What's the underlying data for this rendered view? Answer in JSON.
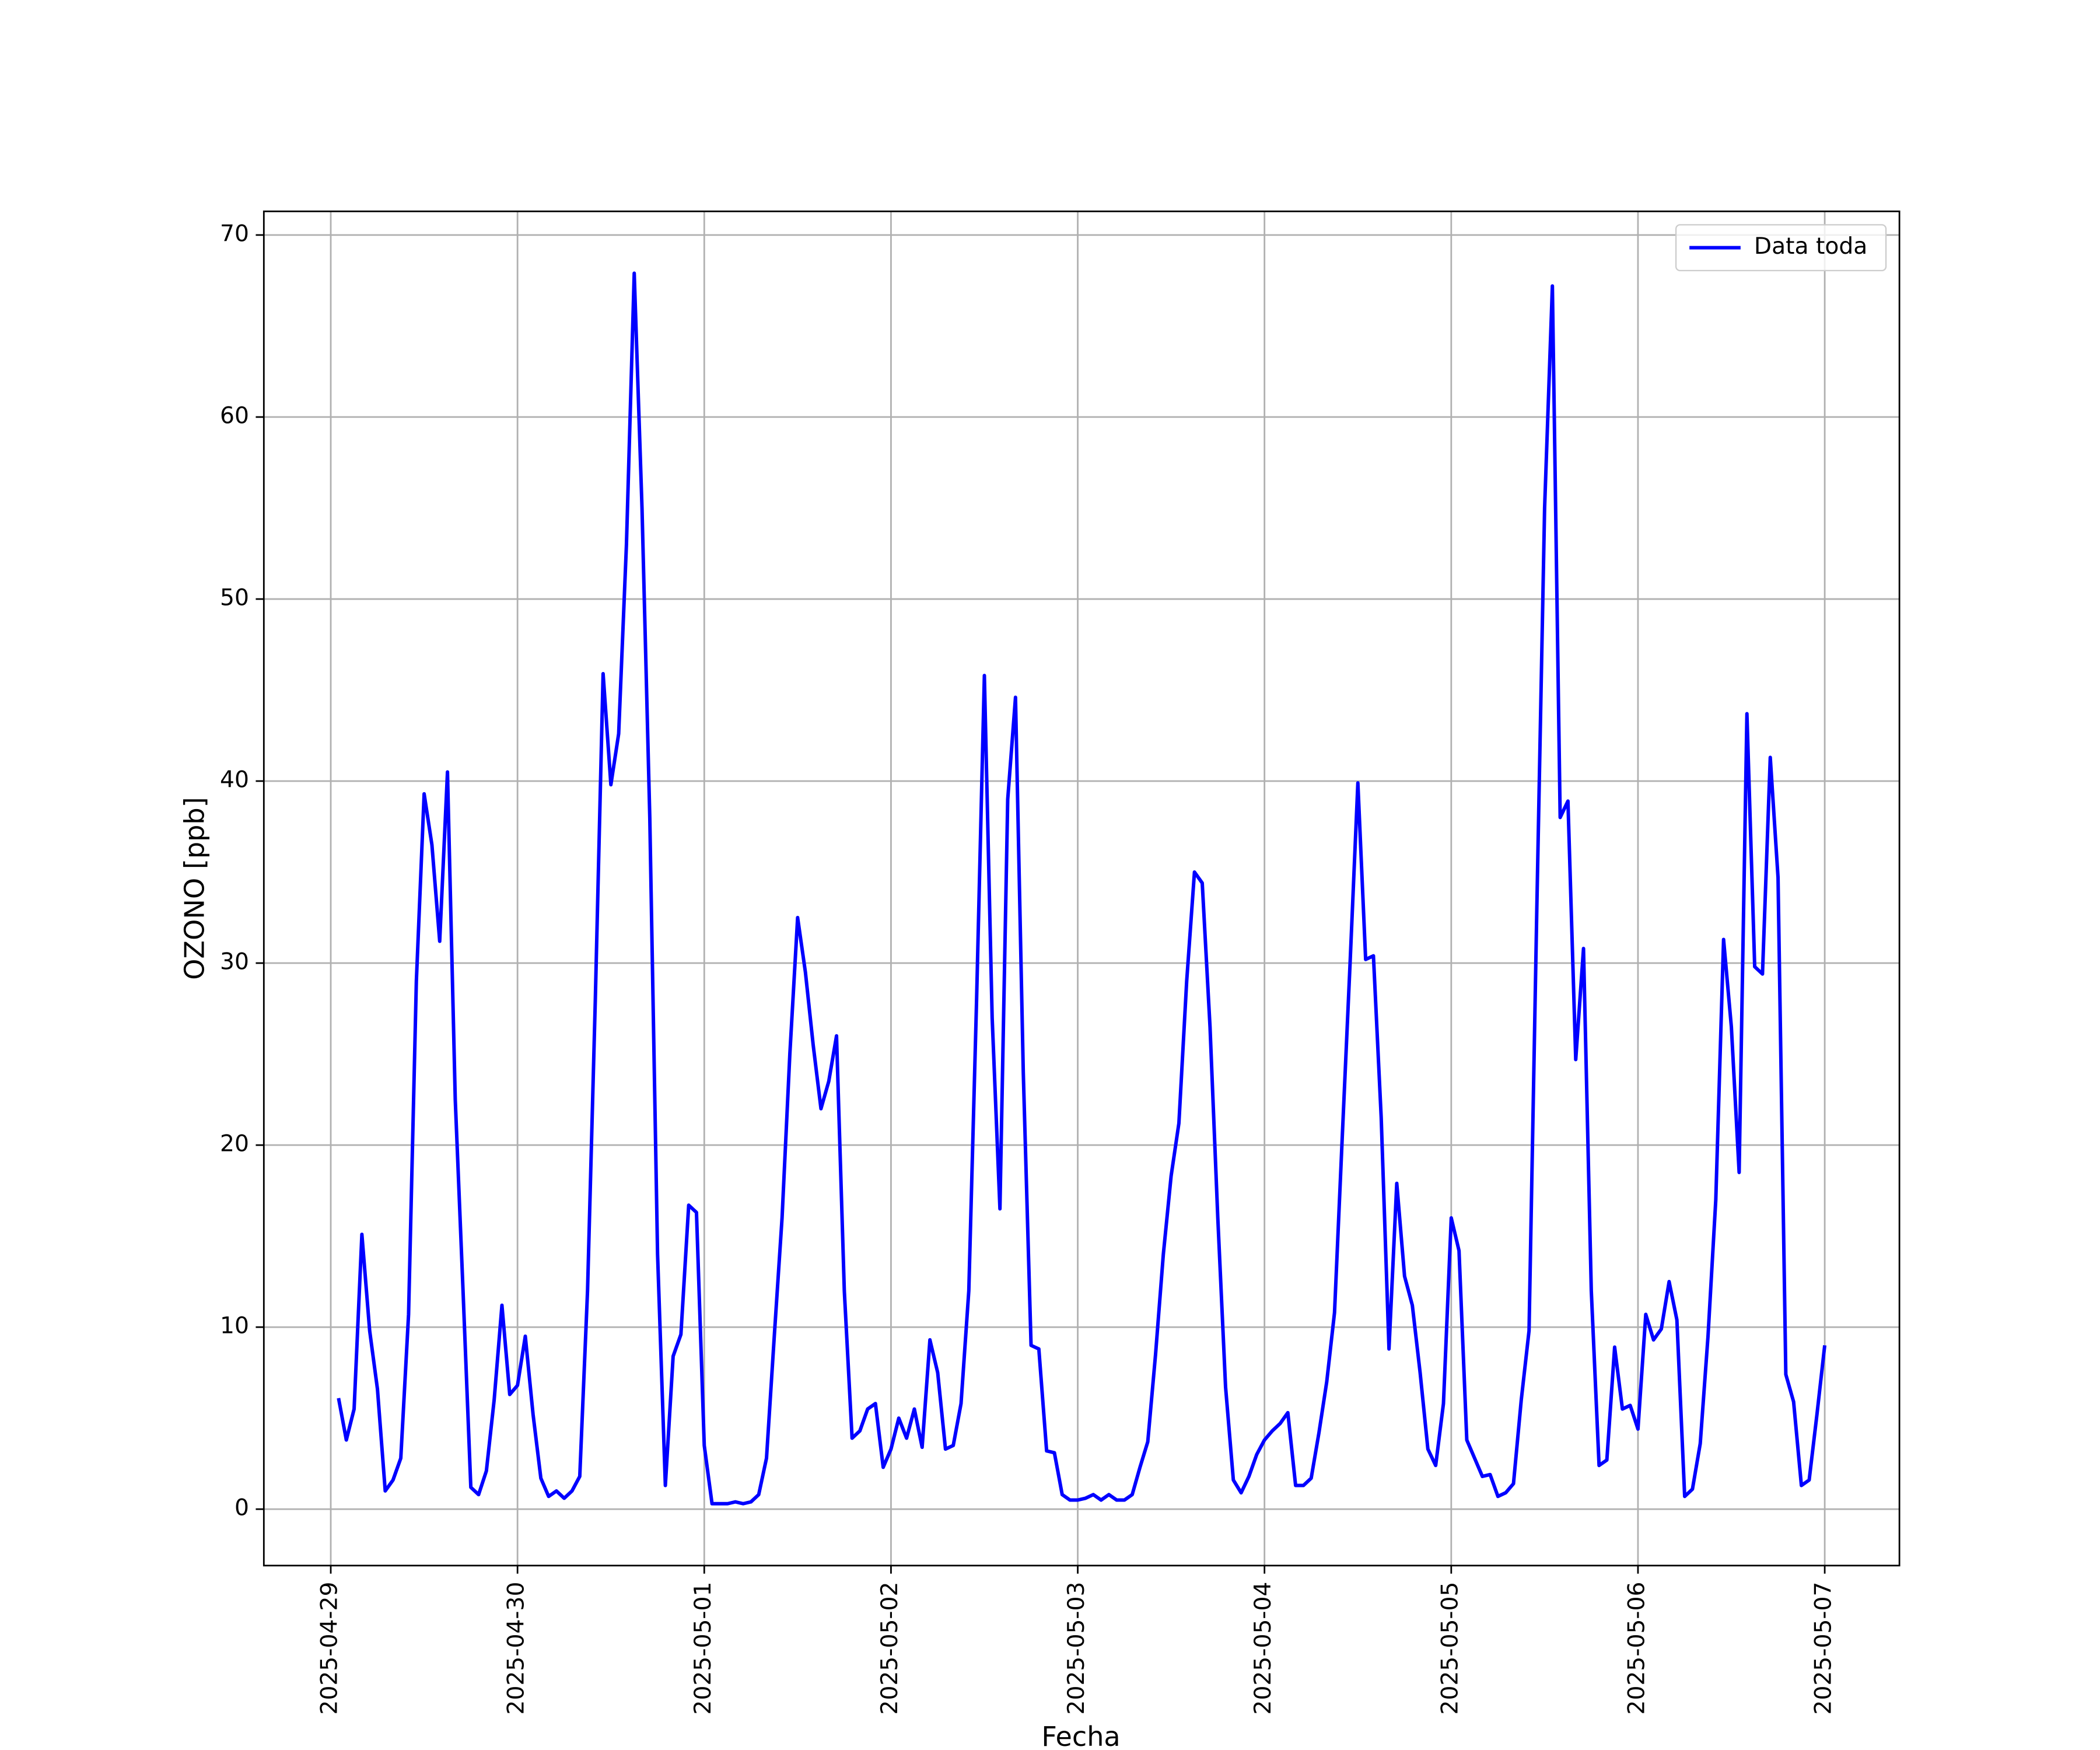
{
  "chart_data": {
    "type": "line",
    "x_label": "Fecha",
    "y_label": "OZONO [ppb]",
    "x": [
      1,
      2,
      3,
      4,
      5,
      6,
      7,
      8,
      9,
      10,
      11,
      12,
      13,
      14,
      15,
      16,
      17,
      18,
      19,
      20,
      21,
      22,
      23,
      24,
      25,
      26,
      27,
      28,
      29,
      30,
      31,
      32,
      33,
      34,
      35,
      36,
      37,
      38,
      39,
      40,
      41,
      42,
      43,
      44,
      45,
      46,
      47,
      48,
      49,
      50,
      51,
      52,
      53,
      54,
      55,
      56,
      57,
      58,
      59,
      60,
      61,
      62,
      63,
      64,
      65,
      66,
      67,
      68,
      69,
      70,
      71,
      72,
      73,
      74,
      75,
      76,
      77,
      78,
      79,
      80,
      81,
      82,
      83,
      84,
      85,
      86,
      87,
      88,
      89,
      90,
      91,
      92,
      93,
      94,
      95,
      96,
      97,
      98,
      99,
      100,
      101,
      102,
      103,
      104,
      105,
      106,
      107,
      108,
      109,
      110,
      111,
      112,
      113,
      114,
      115,
      116,
      117,
      118,
      119,
      120,
      121,
      122,
      123,
      124,
      125,
      126,
      127,
      128,
      129,
      130,
      131,
      132,
      133,
      134,
      135,
      136,
      137,
      138,
      139,
      140,
      141,
      142,
      143,
      144,
      145,
      146,
      147,
      148,
      149,
      150,
      151,
      152,
      153,
      154,
      155,
      156,
      157,
      158,
      159,
      160,
      161,
      162,
      163,
      164,
      165,
      166,
      167,
      168,
      169,
      170,
      171,
      172,
      173,
      174,
      175,
      176,
      177,
      178,
      179,
      180,
      181,
      182,
      183,
      184,
      185,
      186,
      187,
      188,
      189,
      190,
      191,
      192
    ],
    "series": [
      {
        "name": "Data toda",
        "color": "#0000ff",
        "values": [
          6.1,
          3.8,
          5.5,
          15.1,
          9.8,
          6.6,
          1.0,
          1.6,
          2.8,
          10.7,
          29,
          39.3,
          36.5,
          31.2,
          40.5,
          22.5,
          12,
          1.2,
          0.8,
          2.1,
          6,
          11.2,
          6.3,
          6.8,
          9.5,
          5.2,
          1.7,
          0.7,
          1.0,
          0.6,
          1.0,
          1.8,
          12,
          28,
          45.9,
          39.8,
          42.6,
          53,
          67.9,
          55,
          38,
          14,
          1.3,
          8.4,
          9.6,
          16.7,
          16.3,
          3.5,
          0.3,
          0.3,
          0.3,
          0.4,
          0.3,
          0.4,
          0.8,
          2.8,
          9.5,
          16,
          25,
          32.5,
          29.5,
          25.5,
          22,
          23.5,
          26,
          12,
          3.9,
          4.3,
          5.5,
          5.8,
          2.3,
          3.3,
          5.0,
          3.9,
          5.5,
          3.4,
          9.3,
          7.5,
          3.3,
          3.5,
          5.8,
          12,
          28,
          45.8,
          27,
          16.5,
          39,
          44.6,
          24,
          9.0,
          8.8,
          3.2,
          3.1,
          0.8,
          0.5,
          0.5,
          0.6,
          0.8,
          0.5,
          0.8,
          0.5,
          0.5,
          0.8,
          2.3,
          3.7,
          8.5,
          14,
          18.3,
          21.2,
          29,
          35,
          34.4,
          26.5,
          16,
          6.7,
          1.6,
          0.9,
          1.8,
          3,
          3.8,
          4.3,
          4.7,
          5.3,
          1.3,
          1.3,
          1.7,
          4.2,
          7,
          10.8,
          20.5,
          30,
          39.9,
          30.2,
          30.4,
          21.5,
          8.8,
          17.9,
          12.8,
          11.2,
          7.5,
          3.3,
          2.4,
          5.8,
          16,
          14.2,
          3.8,
          2.8,
          1.8,
          1.9,
          0.7,
          0.9,
          1.4,
          6,
          9.8,
          33,
          55,
          67.2,
          38,
          38.9,
          24.7,
          30.8,
          12,
          2.4,
          2.7,
          8.9,
          5.5,
          5.7,
          4.4,
          10.7,
          9.3,
          9.9,
          12.5,
          10.4,
          0.7,
          1.1,
          3.6,
          9.5,
          17,
          31.3,
          26.5,
          18.5,
          43.7,
          29.8,
          29.4,
          41.3,
          34.7,
          7.4,
          5.9,
          1.3,
          1.6,
          5.2,
          9.0
        ]
      }
    ],
    "xlim": [
      -8.6,
      201.6
    ],
    "xticks": [
      {
        "value": 0,
        "label": "2025-04-29"
      },
      {
        "value": 24,
        "label": "2025-04-30"
      },
      {
        "value": 48,
        "label": "2025-05-01"
      },
      {
        "value": 72,
        "label": "2025-05-02"
      },
      {
        "value": 96,
        "label": "2025-05-03"
      },
      {
        "value": 120,
        "label": "2025-05-04"
      },
      {
        "value": 144,
        "label": "2025-05-05"
      },
      {
        "value": 168,
        "label": "2025-05-06"
      },
      {
        "value": 192,
        "label": "2025-05-07"
      }
    ],
    "ylim": [
      -3.1,
      71.3
    ],
    "yticks": [
      0,
      10,
      20,
      30,
      40,
      50,
      60,
      70
    ],
    "grid": true,
    "legend": "upper right"
  }
}
